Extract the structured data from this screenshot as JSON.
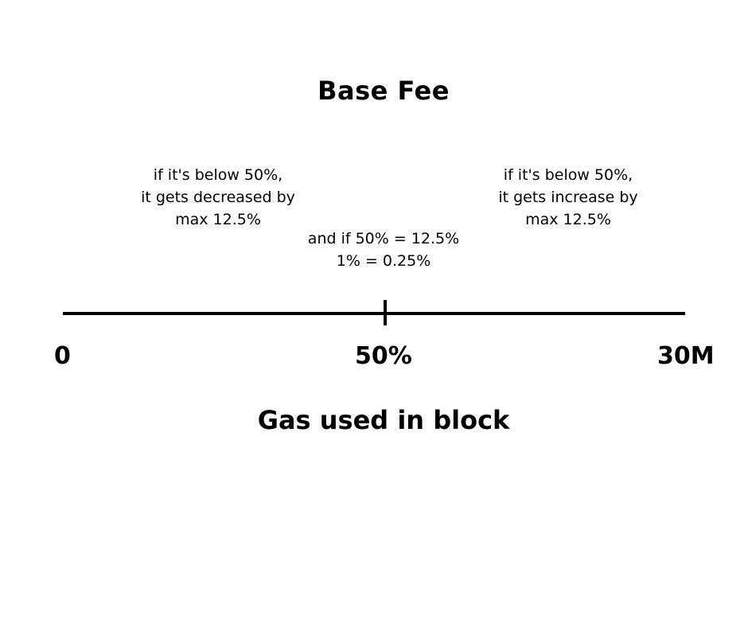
{
  "title": "Base Fee",
  "notes": {
    "left": [
      "if it's below 50%,",
      "it gets decreased by",
      "max 12.5%"
    ],
    "center": [
      "and if 50% = 12.5%",
      "1% = 0.25%"
    ],
    "right": [
      "if it's below 50%,",
      "it gets increase by",
      "max 12.5%"
    ]
  },
  "axis": {
    "ticks": [
      "0",
      "50%",
      "30M"
    ],
    "label": "Gas used in block"
  },
  "colors": {
    "text": "#000000",
    "background": "#ffffff"
  }
}
